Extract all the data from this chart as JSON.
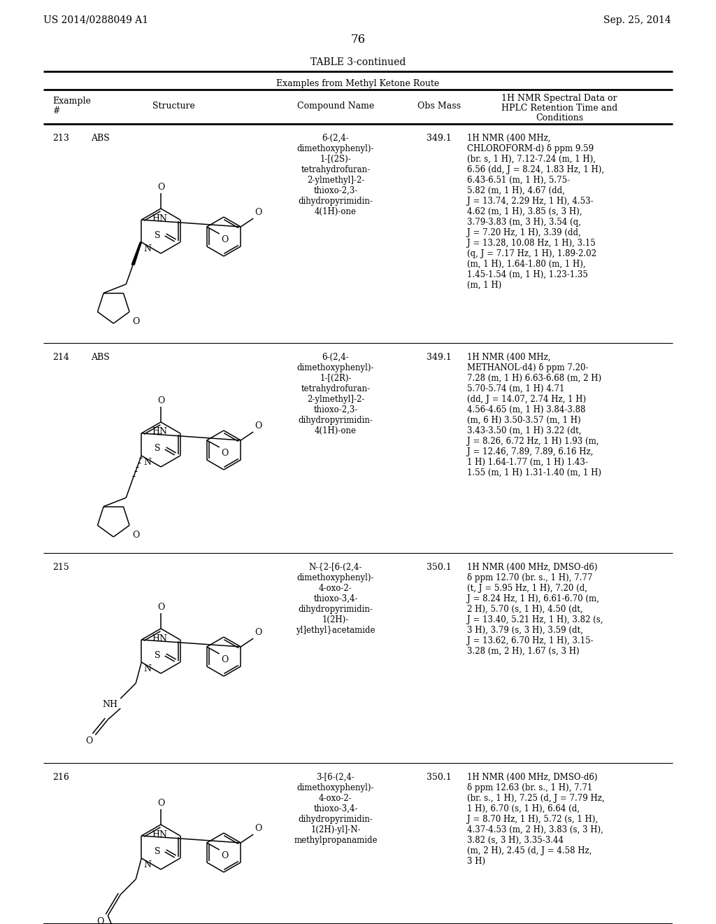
{
  "page_number": "76",
  "left_header": "US 2014/0288049 A1",
  "right_header": "Sep. 25, 2014",
  "table_title": "TABLE 3-continued",
  "table_subtitle": "Examples from Methyl Ketone Route",
  "rows": [
    {
      "example_num": "213",
      "abs_label": "ABS",
      "compound_name": "6-(2,4-\ndimethoxyphenyl)-\n1-[(2S)-\ntetrahydrofuran-\n2-ylmethyl]-2-\nthioxo-2,3-\ndihydropyrimidin-\n4(1H)-one",
      "obs_mass": "349.1",
      "nmr_data": "1H NMR (400 MHz,\nCHLOROFORM-d) δ ppm 9.59\n(br. s, 1 H), 7.12-7.24 (m, 1 H),\n6.56 (dd, J = 8.24, 1.83 Hz, 1 H),\n6.43-6.51 (m, 1 H), 5.75-\n5.82 (m, 1 H), 4.67 (dd,\nJ = 13.74, 2.29 Hz, 1 H), 4.53-\n4.62 (m, 1 H), 3.85 (s, 3 H),\n3.79-3.83 (m, 3 H), 3.54 (q,\nJ = 7.20 Hz, 1 H), 3.39 (dd,\nJ = 13.28, 10.08 Hz, 1 H), 3.15\n(q, J = 7.17 Hz, 1 H), 1.89-2.02\n(m, 1 H), 1.64-1.80 (m, 1 H),\n1.45-1.54 (m, 1 H), 1.23-1.35\n(m, 1 H)"
    },
    {
      "example_num": "214",
      "abs_label": "ABS",
      "compound_name": "6-(2,4-\ndimethoxyphenyl)-\n1-[(2R)-\ntetrahydrofuran-\n2-ylmethyl]-2-\nthioxo-2,3-\ndihydropyrimidin-\n4(1H)-one",
      "obs_mass": "349.1",
      "nmr_data": "1H NMR (400 MHz,\nMETHANOL-d4) δ ppm 7.20-\n7.28 (m, 1 H) 6.63-6.68 (m, 2 H)\n5.70-5.74 (m, 1 H) 4.71\n(dd, J = 14.07, 2.74 Hz, 1 H)\n4.56-4.65 (m, 1 H) 3.84-3.88\n(m, 6 H) 3.50-3.57 (m, 1 H)\n3.43-3.50 (m, 1 H) 3.22 (dt,\nJ = 8.26, 6.72 Hz, 1 H) 1.93 (m,\nJ = 12.46, 7.89, 7.89, 6.16 Hz,\n1 H) 1.64-1.77 (m, 1 H) 1.43-\n1.55 (m, 1 H) 1.31-1.40 (m, 1 H)"
    },
    {
      "example_num": "215",
      "abs_label": "",
      "compound_name": "N-{2-[6-(2,4-\ndimethoxyphenyl)-\n4-oxo-2-\nthioxo-3,4-\ndihydropyrimidin-\n1(2H)-\nyl]ethyl}acetamide",
      "obs_mass": "350.1",
      "nmr_data": "1H NMR (400 MHz, DMSO-d6)\nδ ppm 12.70 (br. s., 1 H), 7.77\n(t, J = 5.95 Hz, 1 H), 7.20 (d,\nJ = 8.24 Hz, 1 H), 6.61-6.70 (m,\n2 H), 5.70 (s, 1 H), 4.50 (dt,\nJ = 13.40, 5.21 Hz, 1 H), 3.82 (s,\n3 H), 3.79 (s, 3 H), 3.59 (dt,\nJ = 13.62, 6.70 Hz, 1 H), 3.15-\n3.28 (m, 2 H), 1.67 (s, 3 H)"
    },
    {
      "example_num": "216",
      "abs_label": "",
      "compound_name": "3-[6-(2,4-\ndimethoxyphenyl)-\n4-oxo-2-\nthioxo-3,4-\ndihydropyrimidin-\n1(2H)-yl]-N-\nmethylpropanamide",
      "obs_mass": "350.1",
      "nmr_data": "1H NMR (400 MHz, DMSO-d6)\nδ ppm 12.63 (br. s., 1 H), 7.71\n(br. s., 1 H), 7.25 (d, J = 7.79 Hz,\n1 H), 6.70 (s, 1 H), 6.64 (d,\nJ = 8.70 Hz, 1 H), 5.72 (s, 1 H),\n4.37-4.53 (m, 2 H), 3.83 (s, 3 H),\n3.82 (s, 3 H), 3.35-3.44\n(m, 2 H), 2.45 (d, J = 4.58 Hz,\n3 H)"
    }
  ]
}
